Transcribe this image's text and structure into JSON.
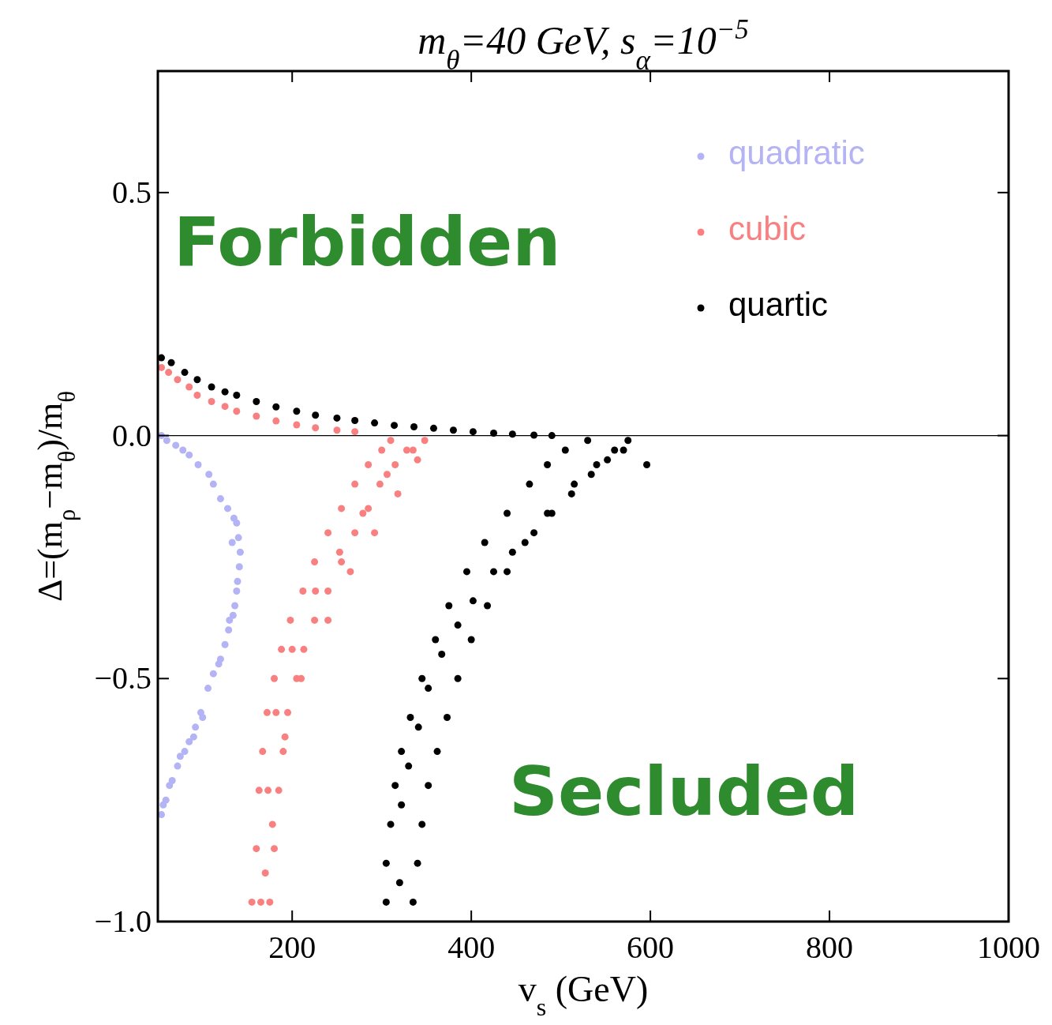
{
  "chart_data": {
    "type": "scatter",
    "title": "m$_{θ}$=40 GeV, s$_{α}$=10$^{−5}$",
    "xlabel": "v$_{s}$ (GeV)",
    "ylabel": "Δ=(m$_{ρ}$−m$_{θ}$)/m$_{θ}$",
    "xlim": [
      50,
      1000
    ],
    "ylim": [
      -1,
      0.75
    ],
    "xticks": [
      200,
      400,
      600,
      800,
      1000
    ],
    "yticks": [
      {
        "value": -1,
        "label": "−1.0"
      },
      {
        "value": -0.5,
        "label": "−0.5"
      },
      {
        "value": 0,
        "label": "0.0"
      },
      {
        "value": 0.5,
        "label": "0.5"
      }
    ],
    "marker": "circle",
    "legend": "top right",
    "grid": false,
    "ref_lines": [
      {
        "axis": "y",
        "value": 0,
        "label": null,
        "color": "#000000"
      }
    ],
    "annotations": [
      "Forbidden",
      "Secluded"
    ],
    "series": [
      {
        "name": "quadratic",
        "color": "#b3b3f5",
        "x": [
          54,
          60,
          70,
          78,
          85,
          95,
          107,
          112,
          120,
          128,
          135,
          138,
          140,
          142,
          141,
          138,
          136,
          134,
          129,
          125,
          120,
          112,
          106,
          98,
          92,
          85,
          80,
          72,
          66,
          59,
          54,
          56,
          63,
          75,
          90,
          100,
          118,
          130,
          139,
          133
        ],
        "values": [
          0,
          -0.01,
          -0.02,
          -0.03,
          -0.04,
          -0.06,
          -0.08,
          -0.1,
          -0.13,
          -0.15,
          -0.17,
          -0.18,
          -0.21,
          -0.24,
          -0.27,
          -0.32,
          -0.35,
          -0.37,
          -0.4,
          -0.43,
          -0.46,
          -0.49,
          -0.52,
          -0.57,
          -0.6,
          -0.63,
          -0.65,
          -0.68,
          -0.71,
          -0.75,
          -0.78,
          -0.76,
          -0.72,
          -0.66,
          -0.62,
          -0.58,
          -0.47,
          -0.38,
          -0.3,
          -0.22
        ]
      },
      {
        "name": "cubic",
        "color": "#f98080",
        "x": [
          54,
          62,
          72,
          85,
          94,
          110,
          125,
          138,
          160,
          182,
          205,
          226,
          250,
          270,
          155,
          175,
          160,
          180,
          163,
          185,
          167,
          190,
          172,
          195,
          180,
          205,
          188,
          213,
          198,
          225,
          212,
          240,
          225,
          255,
          240,
          270,
          255,
          285,
          270,
          298,
          285,
          315,
          300,
          335,
          310,
          348,
          165,
          170,
          173,
          178,
          182,
          192,
          200,
          210,
          226,
          240,
          253,
          265,
          279,
          292,
          306,
          318,
          328,
          340
        ],
        "values": [
          0.14,
          0.13,
          0.115,
          0.1,
          0.083,
          0.07,
          0.06,
          0.05,
          0.04,
          0.03,
          0.022,
          0.016,
          0.011,
          0.008,
          -0.96,
          -0.96,
          -0.85,
          -0.85,
          -0.73,
          -0.73,
          -0.65,
          -0.65,
          -0.57,
          -0.57,
          -0.5,
          -0.5,
          -0.44,
          -0.44,
          -0.38,
          -0.38,
          -0.32,
          -0.32,
          -0.26,
          -0.26,
          -0.2,
          -0.2,
          -0.15,
          -0.15,
          -0.1,
          -0.1,
          -0.06,
          -0.06,
          -0.03,
          -0.03,
          -0.01,
          -0.01,
          -0.96,
          -0.9,
          -0.73,
          -0.8,
          -0.57,
          -0.62,
          -0.44,
          -0.5,
          -0.32,
          -0.38,
          -0.24,
          -0.28,
          -0.16,
          -0.2,
          -0.08,
          -0.12,
          -0.03,
          -0.05
        ]
      },
      {
        "name": "quartic",
        "color": "#000000",
        "x": [
          54,
          65,
          80,
          94,
          110,
          125,
          138,
          160,
          182,
          205,
          226,
          250,
          270,
          292,
          314,
          336,
          358,
          380,
          402,
          425,
          446,
          470,
          490,
          305,
          335,
          305,
          340,
          310,
          345,
          315,
          352,
          322,
          362,
          332,
          373,
          345,
          385,
          360,
          400,
          375,
          418,
          395,
          440,
          415,
          460,
          440,
          485,
          465,
          515,
          485,
          540,
          505,
          560,
          530,
          575,
          596,
          320,
          322,
          330,
          341,
          352,
          367,
          385,
          402,
          425,
          446,
          470,
          490,
          512,
          534,
          552,
          570
        ],
        "values": [
          0.16,
          0.15,
          0.13,
          0.115,
          0.1,
          0.09,
          0.083,
          0.07,
          0.059,
          0.05,
          0.042,
          0.036,
          0.031,
          0.026,
          0.021,
          0.018,
          0.015,
          0.011,
          0.008,
          0.005,
          0.003,
          0.001,
          0,
          -0.96,
          -0.96,
          -0.88,
          -0.88,
          -0.8,
          -0.8,
          -0.72,
          -0.72,
          -0.65,
          -0.65,
          -0.58,
          -0.58,
          -0.5,
          -0.5,
          -0.42,
          -0.42,
          -0.35,
          -0.35,
          -0.28,
          -0.28,
          -0.22,
          -0.22,
          -0.16,
          -0.16,
          -0.1,
          -0.1,
          -0.06,
          -0.06,
          -0.03,
          -0.03,
          -0.01,
          -0.01,
          -0.06,
          -0.92,
          -0.76,
          -0.68,
          -0.6,
          -0.52,
          -0.45,
          -0.39,
          -0.34,
          -0.28,
          -0.24,
          -0.2,
          -0.16,
          -0.12,
          -0.08,
          -0.05,
          -0.03
        ]
      }
    ]
  }
}
